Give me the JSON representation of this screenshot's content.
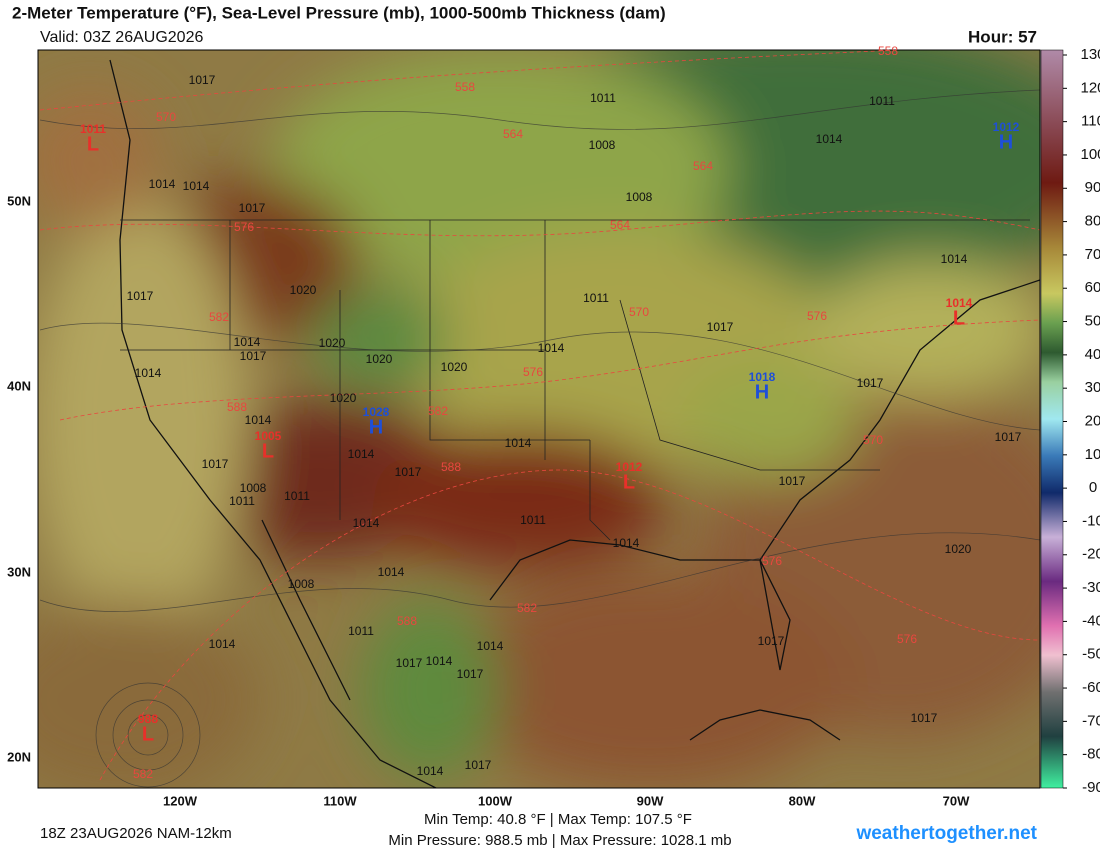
{
  "header": {
    "title": "2-Meter Temperature (°F), Sea-Level Pressure (mb), 1000-500mb Thickness (dam)",
    "valid": "Valid: 03Z 26AUG2026",
    "hour": "Hour: 57"
  },
  "colorbar": {
    "ticks": [
      130,
      120,
      110,
      100,
      90,
      80,
      70,
      60,
      50,
      40,
      30,
      20,
      10,
      0,
      -10,
      -20,
      -30,
      -40,
      -50,
      -60,
      -70,
      -80,
      -90
    ]
  },
  "axes": {
    "lat_labels": [
      "50N",
      "40N",
      "30N",
      "20N"
    ],
    "lon_labels": [
      "120W",
      "110W",
      "100W",
      "90W",
      "80W",
      "70W"
    ]
  },
  "map": {
    "isobar_labels": [
      "1017",
      "1011",
      "1011",
      "1008",
      "1014",
      "1014",
      "1014",
      "1008",
      "1017",
      "1014",
      "1017",
      "1020",
      "1011",
      "1017",
      "1014",
      "1020",
      "1014",
      "1017",
      "1020",
      "1014",
      "1020",
      "1017",
      "1020",
      "1014",
      "1014",
      "1017",
      "1014",
      "1017",
      "1017",
      "1008",
      "1011",
      "1017",
      "1011",
      "1011",
      "1014",
      "1014",
      "1020",
      "1014",
      "1008",
      "1011",
      "1014",
      "1014",
      "1014",
      "1017",
      "1017",
      "1017",
      "1017",
      "1014",
      "1017"
    ],
    "thickness_labels": [
      "558",
      "570",
      "558",
      "564",
      "564",
      "576",
      "564",
      "582",
      "570",
      "576",
      "576",
      "588",
      "582",
      "570",
      "588",
      "576",
      "582",
      "588",
      "576",
      "582"
    ],
    "centers": [
      {
        "letter": "L",
        "value": "1011"
      },
      {
        "letter": "H",
        "value": "1012"
      },
      {
        "letter": "L",
        "value": "1014"
      },
      {
        "letter": "H",
        "value": "1018"
      },
      {
        "letter": "H",
        "value": "1028"
      },
      {
        "letter": "L",
        "value": "1005"
      },
      {
        "letter": "L",
        "value": "1012"
      },
      {
        "letter": "L",
        "value": "988"
      }
    ]
  },
  "footer": {
    "run": "18Z 23AUG2026 NAM-12km",
    "temps": "Min Temp:  40.8 °F | Max Temp: 107.5 °F",
    "pressures": "Min Pressure: 988.5 mb | Max Pressure: 1028.1 mb",
    "site": "weathertogether.net"
  }
}
